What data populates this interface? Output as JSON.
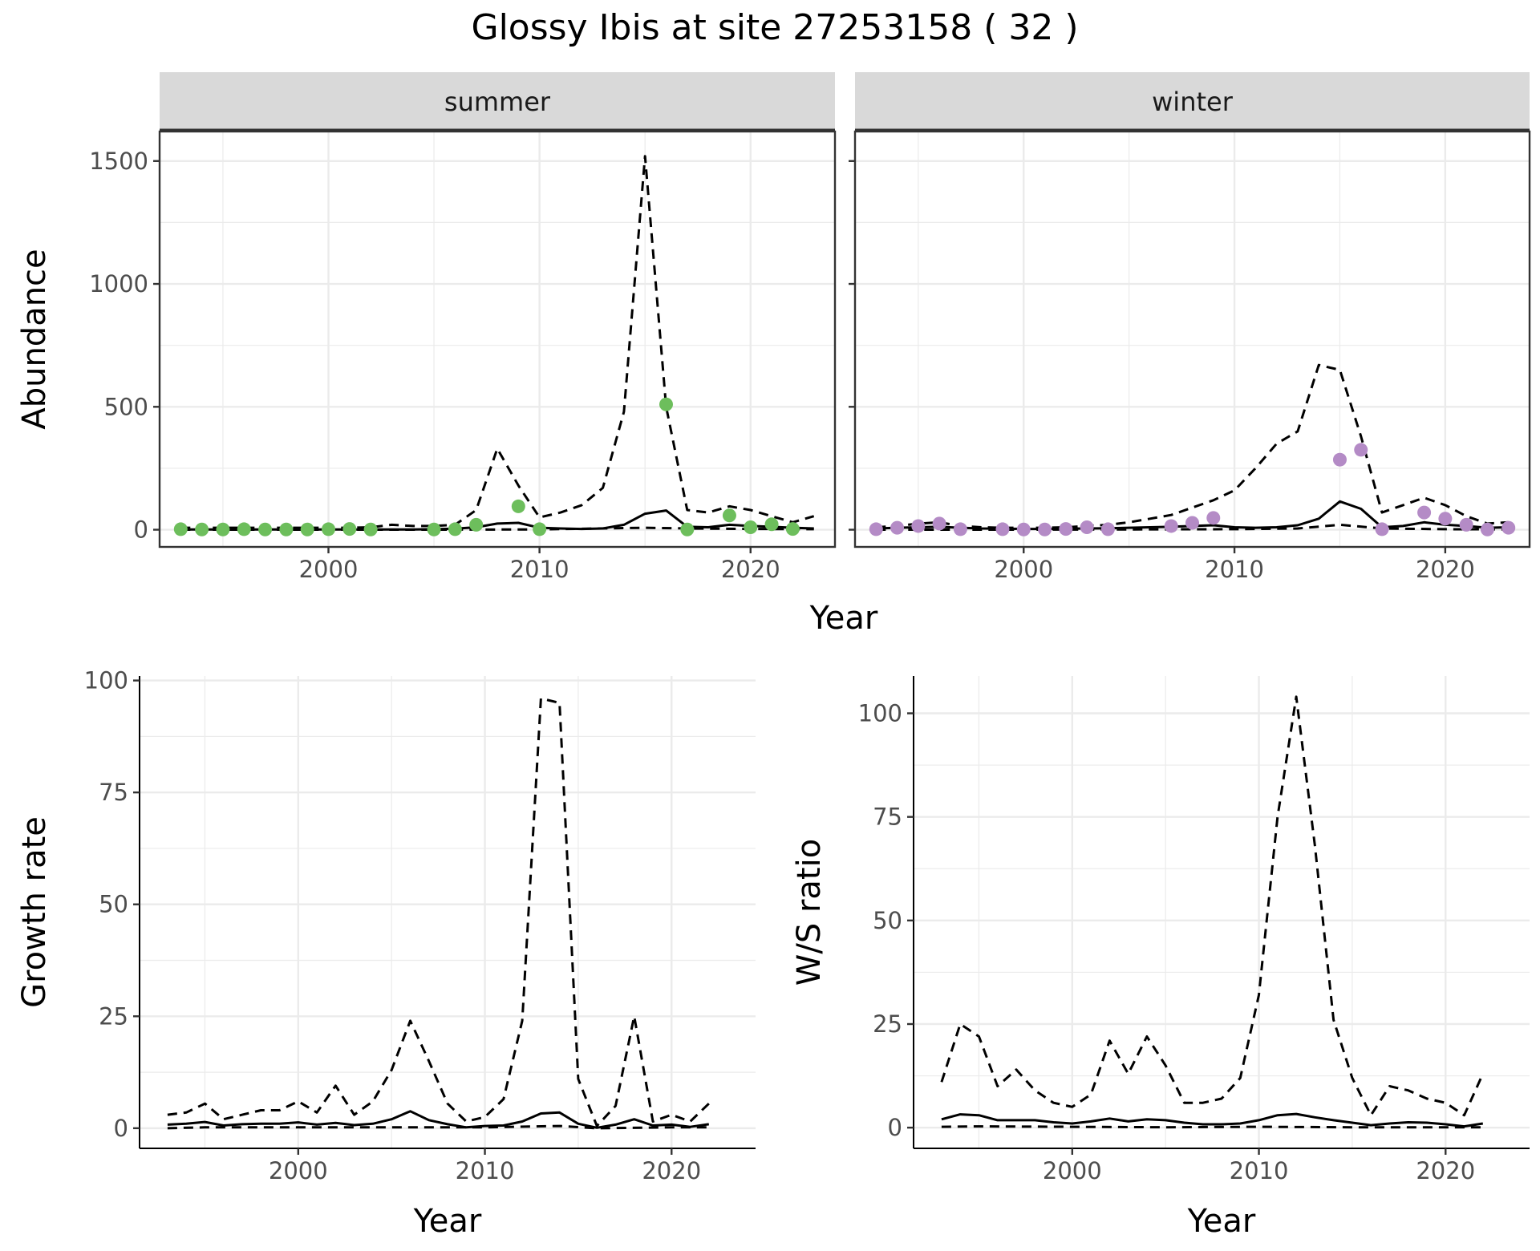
{
  "title": "Glossy Ibis at site 27253158 ( 32 )",
  "colors": {
    "summer_points": "#6DBE5C",
    "winter_points": "#B48BC6",
    "lines": "#000000",
    "grid": "#ebebeb",
    "strip": "#d9d9d9"
  },
  "chart_data": [
    {
      "type": "line",
      "facet": "summer",
      "xlabel": "Year",
      "ylabel": "Abundance",
      "xlim": [
        1992,
        2024
      ],
      "ylim": [
        -70,
        1620
      ],
      "xticks": [
        2000,
        2010,
        2020
      ],
      "yticks": [
        0,
        500,
        1000,
        1500
      ],
      "grid": true,
      "points": {
        "x": [
          1993,
          1994,
          1995,
          1996,
          1997,
          1998,
          1999,
          2000,
          2001,
          2002,
          2005,
          2006,
          2007,
          2009,
          2010,
          2016,
          2017,
          2019,
          2020,
          2021,
          2022
        ],
        "y": [
          2,
          1,
          1,
          2,
          1,
          1,
          1,
          2,
          3,
          1,
          1,
          2,
          20,
          95,
          2,
          510,
          1,
          58,
          10,
          22,
          3
        ]
      },
      "series": [
        {
          "style": "solid",
          "x": [
            1993,
            1994,
            1995,
            1996,
            1997,
            1998,
            1999,
            2000,
            2001,
            2002,
            2003,
            2004,
            2005,
            2006,
            2007,
            2008,
            2009,
            2010,
            2011,
            2012,
            2013,
            2014,
            2015,
            2016,
            2017,
            2018,
            2019,
            2020,
            2021,
            2022,
            2023
          ],
          "y": [
            1,
            1,
            1,
            1,
            1,
            1,
            1,
            1,
            1,
            1,
            1,
            1,
            2,
            4,
            10,
            25,
            28,
            8,
            5,
            3,
            5,
            20,
            65,
            78,
            12,
            10,
            20,
            15,
            12,
            8,
            5
          ]
        },
        {
          "style": "dashed",
          "x": [
            1993,
            1994,
            1995,
            1996,
            1997,
            1998,
            1999,
            2000,
            2001,
            2002,
            2003,
            2004,
            2005,
            2006,
            2007,
            2008,
            2009,
            2010,
            2011,
            2012,
            2013,
            2014,
            2015,
            2016,
            2017,
            2018,
            2019,
            2020,
            2021,
            2022,
            2023
          ],
          "y": [
            8,
            8,
            8,
            8,
            8,
            8,
            8,
            8,
            8,
            10,
            20,
            15,
            15,
            20,
            80,
            330,
            180,
            50,
            70,
            100,
            170,
            480,
            1520,
            500,
            80,
            70,
            95,
            80,
            55,
            30,
            55
          ]
        },
        {
          "style": "dashed",
          "x": [
            1993,
            1995,
            2000,
            2005,
            2010,
            2015,
            2017,
            2020,
            2023
          ],
          "y": [
            0,
            0,
            0,
            0,
            1,
            8,
            5,
            3,
            2
          ]
        }
      ]
    },
    {
      "type": "line",
      "facet": "winter",
      "xlabel": "Year",
      "ylabel": "Abundance",
      "xlim": [
        1992,
        2024
      ],
      "ylim": [
        -70,
        1620
      ],
      "xticks": [
        2000,
        2010,
        2020
      ],
      "yticks": [
        0,
        500,
        1000,
        1500
      ],
      "grid": true,
      "points": {
        "x": [
          1993,
          1994,
          1995,
          1996,
          1997,
          1999,
          2000,
          2001,
          2002,
          2003,
          2004,
          2007,
          2008,
          2009,
          2015,
          2016,
          2017,
          2019,
          2020,
          2021,
          2022,
          2023
        ],
        "y": [
          2,
          8,
          15,
          25,
          2,
          2,
          1,
          1,
          3,
          10,
          2,
          15,
          28,
          48,
          285,
          325,
          2,
          70,
          45,
          20,
          1,
          8
        ]
      },
      "series": [
        {
          "style": "solid",
          "x": [
            1993,
            1994,
            1995,
            1996,
            1997,
            1998,
            1999,
            2000,
            2001,
            2002,
            2003,
            2004,
            2005,
            2006,
            2007,
            2008,
            2009,
            2010,
            2011,
            2012,
            2013,
            2014,
            2015,
            2016,
            2017,
            2018,
            2019,
            2020,
            2021,
            2022,
            2023
          ],
          "y": [
            5,
            8,
            10,
            12,
            8,
            5,
            4,
            3,
            3,
            4,
            5,
            6,
            8,
            10,
            12,
            15,
            18,
            10,
            8,
            10,
            18,
            45,
            115,
            85,
            10,
            15,
            30,
            20,
            15,
            8,
            10
          ]
        },
        {
          "style": "dashed",
          "x": [
            1993,
            1994,
            1995,
            1996,
            1997,
            1998,
            1999,
            2000,
            2001,
            2002,
            2003,
            2004,
            2005,
            2006,
            2007,
            2008,
            2009,
            2010,
            2011,
            2012,
            2013,
            2014,
            2015,
            2016,
            2017,
            2018,
            2019,
            2020,
            2021,
            2022,
            2023
          ],
          "y": [
            10,
            15,
            25,
            30,
            15,
            10,
            8,
            8,
            8,
            10,
            15,
            20,
            30,
            45,
            60,
            90,
            120,
            160,
            250,
            350,
            400,
            670,
            650,
            380,
            70,
            100,
            130,
            100,
            55,
            25,
            30
          ]
        },
        {
          "style": "dashed",
          "x": [
            1993,
            1995,
            2000,
            2005,
            2010,
            2013,
            2015,
            2017,
            2020,
            2023
          ],
          "y": [
            0,
            0,
            0,
            1,
            2,
            5,
            20,
            5,
            2,
            1
          ]
        }
      ]
    },
    {
      "type": "line",
      "xlabel": "Year",
      "ylabel": "Growth rate",
      "xlim": [
        1991.5,
        2024.5
      ],
      "ylim": [
        -4.5,
        101
      ],
      "xticks": [
        2000,
        2010,
        2020
      ],
      "yticks": [
        0,
        25,
        50,
        75,
        100
      ],
      "grid": true,
      "series": [
        {
          "style": "solid",
          "x": [
            1993,
            1994,
            1995,
            1996,
            1997,
            1998,
            1999,
            2000,
            2001,
            2002,
            2003,
            2004,
            2005,
            2006,
            2007,
            2008,
            2009,
            2010,
            2011,
            2012,
            2013,
            2014,
            2015,
            2016,
            2017,
            2018,
            2019,
            2020,
            2021,
            2022
          ],
          "y": [
            0.8,
            1.0,
            1.4,
            0.6,
            0.9,
            1.0,
            1.0,
            1.3,
            0.8,
            1.2,
            0.7,
            1.0,
            2.0,
            3.8,
            1.8,
            0.9,
            0.2,
            0.5,
            0.6,
            1.5,
            3.3,
            3.5,
            1.0,
            0.1,
            0.8,
            2.0,
            0.6,
            0.8,
            0.3,
            0.9
          ]
        },
        {
          "style": "dashed",
          "x": [
            1993,
            1994,
            1995,
            1996,
            1997,
            1998,
            1999,
            2000,
            2001,
            2002,
            2003,
            2004,
            2005,
            2006,
            2007,
            2008,
            2009,
            2010,
            2011,
            2012,
            2013,
            2014,
            2015,
            2016,
            2017,
            2018,
            2019,
            2020,
            2021,
            2022
          ],
          "y": [
            3.0,
            3.5,
            5.5,
            2.0,
            3.0,
            4.0,
            4.0,
            6.0,
            3.5,
            9.5,
            3.0,
            6.0,
            13.0,
            24.0,
            15.0,
            5.5,
            1.5,
            2.5,
            6.5,
            24.0,
            96.0,
            95.0,
            11.0,
            0.5,
            5.0,
            25.0,
            1.5,
            3.0,
            1.5,
            5.5
          ]
        },
        {
          "style": "dashed",
          "x": [
            1993,
            1995,
            2000,
            2005,
            2010,
            2014,
            2016,
            2020,
            2022
          ],
          "y": [
            0,
            0.2,
            0.2,
            0.2,
            0.2,
            0.5,
            0,
            0.2,
            0.2
          ]
        }
      ]
    },
    {
      "type": "line",
      "xlabel": "Year",
      "ylabel": "W/S ratio",
      "xlim": [
        1991.5,
        2024.5
      ],
      "ylim": [
        -5,
        109
      ],
      "xticks": [
        2000,
        2010,
        2020
      ],
      "yticks": [
        0,
        25,
        50,
        75,
        100
      ],
      "grid": true,
      "series": [
        {
          "style": "solid",
          "x": [
            1993,
            1994,
            1995,
            1996,
            1997,
            1998,
            1999,
            2000,
            2001,
            2002,
            2003,
            2004,
            2005,
            2006,
            2007,
            2008,
            2009,
            2010,
            2011,
            2012,
            2013,
            2014,
            2015,
            2016,
            2017,
            2018,
            2019,
            2020,
            2021,
            2022
          ],
          "y": [
            2.0,
            3.2,
            3.0,
            1.8,
            1.8,
            1.8,
            1.3,
            1.0,
            1.5,
            2.2,
            1.5,
            2.0,
            1.8,
            1.2,
            0.8,
            0.8,
            1.0,
            1.8,
            3.0,
            3.3,
            2.5,
            1.8,
            1.2,
            0.6,
            1.0,
            1.3,
            1.2,
            0.8,
            0.3,
            1.0
          ]
        },
        {
          "style": "dashed",
          "x": [
            1993,
            1994,
            1995,
            1996,
            1997,
            1998,
            1999,
            2000,
            2001,
            2002,
            2003,
            2004,
            2005,
            2006,
            2007,
            2008,
            2009,
            2010,
            2011,
            2012,
            2013,
            2014,
            2015,
            2016,
            2017,
            2018,
            2019,
            2020,
            2021,
            2022
          ],
          "y": [
            11,
            25,
            22,
            10,
            14,
            9,
            6,
            5,
            8,
            21,
            13,
            22,
            15,
            6,
            6,
            7,
            12,
            32,
            75,
            104,
            68,
            26,
            12,
            3,
            10,
            9,
            7,
            6,
            3,
            13
          ]
        },
        {
          "style": "dashed",
          "x": [
            1993,
            1995,
            2000,
            2005,
            2010,
            2015,
            2020,
            2022
          ],
          "y": [
            0.2,
            0.3,
            0.2,
            0.1,
            0.2,
            0.1,
            0.1,
            0.1
          ]
        }
      ]
    }
  ]
}
